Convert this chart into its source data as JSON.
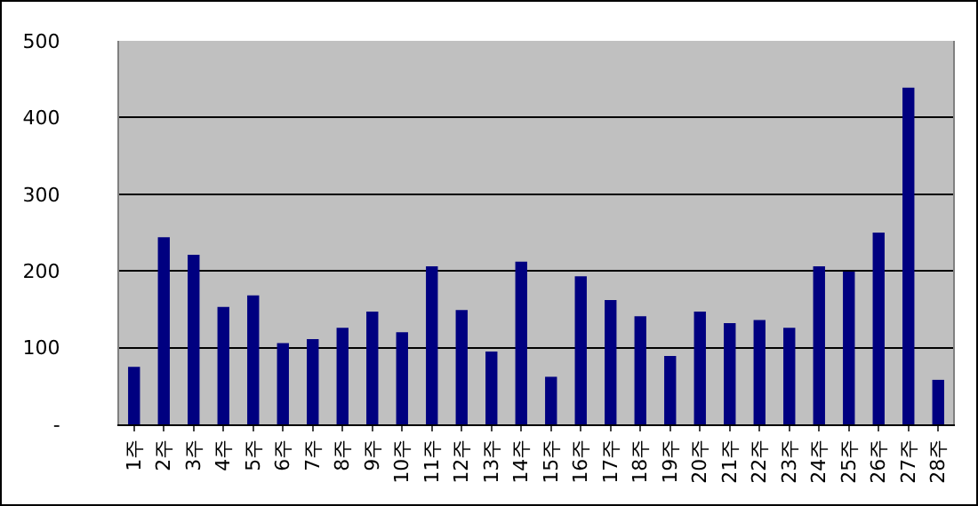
{
  "chart_data": {
    "type": "bar",
    "categories": [
      "1주",
      "2주",
      "3주",
      "4주",
      "5주",
      "6주",
      "7주",
      "8주",
      "9주",
      "10주",
      "11주",
      "12주",
      "13주",
      "14주",
      "15주",
      "16주",
      "17주",
      "18주",
      "19주",
      "20주",
      "21주",
      "22주",
      "23주",
      "24주",
      "25주",
      "26주",
      "27주",
      "28주"
    ],
    "values": [
      75,
      244,
      221,
      153,
      168,
      106,
      111,
      126,
      147,
      120,
      206,
      149,
      95,
      212,
      62,
      193,
      162,
      141,
      89,
      147,
      132,
      136,
      126,
      206,
      199,
      250,
      439,
      58
    ],
    "color": "#000080",
    "ylim": [
      0,
      500
    ],
    "yticks": [
      {
        "value": 0,
        "label": "-"
      },
      100,
      200,
      300,
      400,
      500
    ],
    "grid": "y"
  }
}
